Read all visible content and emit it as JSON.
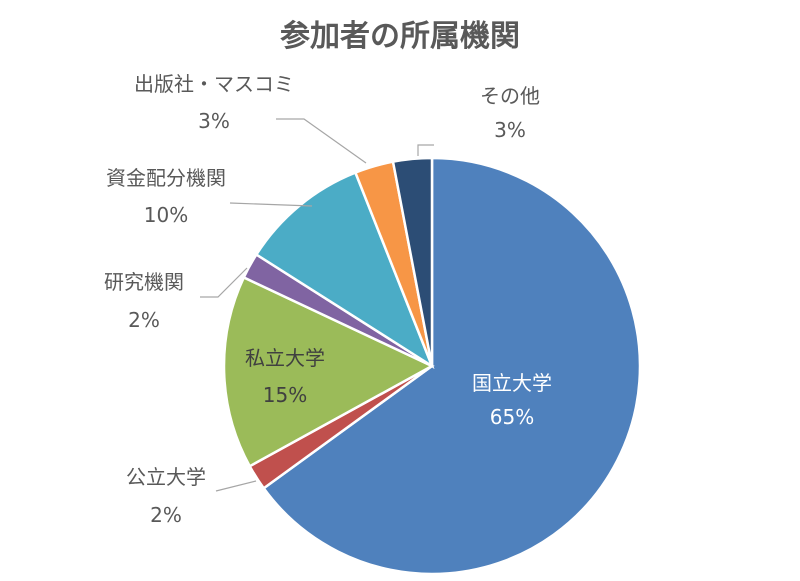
{
  "chart_data": {
    "type": "pie",
    "title": "参加者の所属機関",
    "slices": [
      {
        "label": "国立大学",
        "value": 65,
        "pct": "65%",
        "color": "#4F81BD",
        "text_color": "#ffffff",
        "label_pos": "inside"
      },
      {
        "label": "公立大学",
        "value": 2,
        "pct": "2%",
        "color": "#C0504D",
        "text_color": "#595959",
        "label_pos": "outside"
      },
      {
        "label": "私立大学",
        "value": 15,
        "pct": "15%",
        "color": "#9BBB59",
        "text_color": "#404040",
        "label_pos": "inside"
      },
      {
        "label": "研究機関",
        "value": 2,
        "pct": "2%",
        "color": "#8064A2",
        "text_color": "#595959",
        "label_pos": "outside"
      },
      {
        "label": "資金配分機関",
        "value": 10,
        "pct": "10%",
        "color": "#4BACC6",
        "text_color": "#595959",
        "label_pos": "outside"
      },
      {
        "label": "出版社・マスコミ",
        "value": 3,
        "pct": "3%",
        "color": "#F79646",
        "text_color": "#595959",
        "label_pos": "outside"
      },
      {
        "label": "その他",
        "value": 3,
        "pct": "3%",
        "color": "#2C4D75",
        "text_color": "#595959",
        "label_pos": "outside"
      }
    ]
  }
}
